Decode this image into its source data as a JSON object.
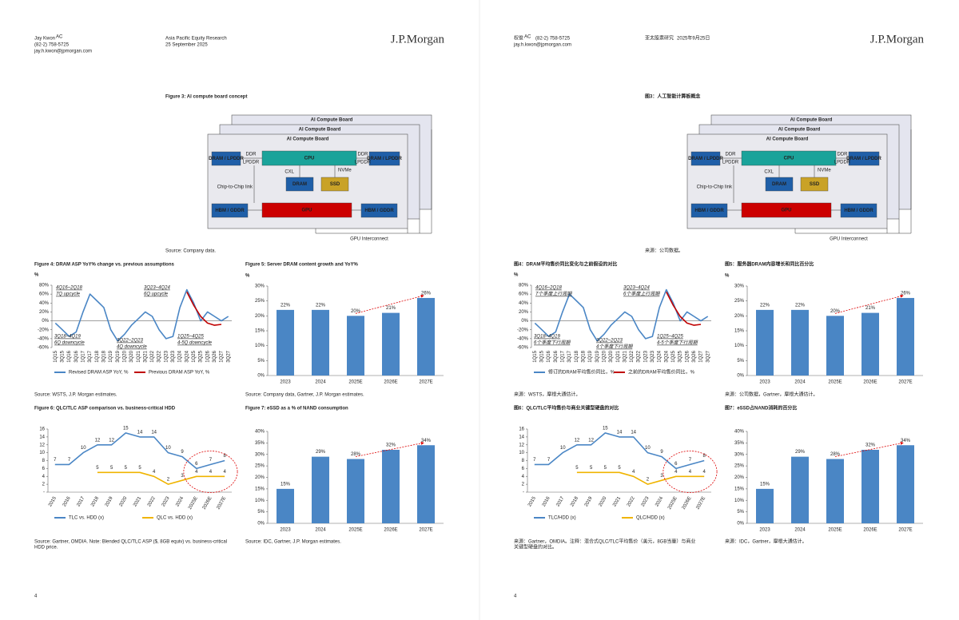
{
  "diagram": {
    "board": "AI Compute Board",
    "cpu": "CPU",
    "gpu": "GPU",
    "dram_lpddr": "DRAM / LPDDR",
    "ddr": "DDR",
    "lpddr": "LPDDR",
    "cxl": "CXL",
    "nvme": "NVMe",
    "c2c": "Chip-to-Chip link",
    "dram": "DRAM",
    "ssd": "SSD",
    "hbm": "HBM / GDDR",
    "interconnect": "GPU Interconnect"
  },
  "charts": {
    "fig4": {
      "type": "line",
      "unit": "%",
      "grid": false,
      "categories": [
        "1Q15",
        "3Q15",
        "1Q16",
        "3Q16",
        "1Q17",
        "3Q17",
        "1Q18",
        "3Q18",
        "1Q19",
        "3Q19",
        "1Q20",
        "3Q20",
        "1Q21",
        "3Q21",
        "1Q22",
        "3Q22",
        "1Q23",
        "3Q23",
        "1Q24",
        "3Q24",
        "1Q25",
        "3Q25",
        "1Q26",
        "3Q26",
        "1Q27",
        "3Q27"
      ],
      "series": [
        {
          "color": "#4a86c5",
          "values": [
            -5,
            -20,
            -35,
            -25,
            20,
            60,
            45,
            30,
            -20,
            -45,
            -30,
            -10,
            5,
            20,
            10,
            -20,
            -40,
            -35,
            30,
            70,
            40,
            0,
            20,
            10,
            0,
            10
          ]
        },
        {
          "color": "#c00000",
          "values": [
            null,
            null,
            null,
            null,
            null,
            null,
            null,
            null,
            null,
            null,
            null,
            null,
            null,
            null,
            null,
            null,
            null,
            null,
            null,
            65,
            35,
            10,
            -5,
            -10,
            -8,
            null
          ]
        }
      ],
      "ylim": [
        -60,
        80
      ],
      "yticks": [
        {
          "value": 80,
          "label": "80%"
        },
        {
          "value": 60,
          "label": "60%"
        },
        {
          "value": 40,
          "label": "40%"
        },
        {
          "value": 20,
          "label": "20%"
        },
        {
          "value": 0,
          "label": "0%"
        },
        {
          "value": -20,
          "label": "-20%"
        },
        {
          "value": -40,
          "label": "-40%"
        },
        {
          "value": -60,
          "label": "-60%"
        }
      ]
    },
    "fig5": {
      "type": "bar",
      "unit": "%",
      "grid": false,
      "color": "#4a86c5",
      "categories": [
        "2023",
        "2024",
        "2025E",
        "2026E",
        "2027E"
      ],
      "values": [
        22,
        22,
        20,
        21,
        26
      ],
      "value_labels": [
        "22%",
        "22%",
        "20%",
        "21%",
        "26%"
      ],
      "ylim": [
        0,
        30
      ],
      "yticks": [
        {
          "value": 0,
          "label": "0%"
        },
        {
          "value": 5,
          "label": "5%"
        },
        {
          "value": 10,
          "label": "10%"
        },
        {
          "value": 15,
          "label": "15%"
        },
        {
          "value": 20,
          "label": "20%"
        },
        {
          "value": 25,
          "label": "25%"
        },
        {
          "value": 30,
          "label": "30%"
        }
      ]
    },
    "fig6": {
      "type": "line",
      "grid": false,
      "data_labels": true,
      "categories": [
        "2015",
        "2016",
        "2017",
        "2018",
        "2019",
        "2020",
        "2021",
        "2022",
        "2023",
        "2024",
        "2025E",
        "2026E",
        "2027E"
      ],
      "series": [
        {
          "color": "#4a86c5",
          "values": [
            7,
            7,
            10,
            12,
            12,
            15,
            14,
            14,
            10,
            9,
            6,
            7,
            8
          ]
        },
        {
          "color": "#f0b400",
          "values": [
            null,
            null,
            null,
            5,
            5,
            5,
            5,
            4,
            2,
            3,
            4,
            4,
            4
          ]
        }
      ],
      "ylim": [
        0,
        16
      ],
      "yticks": [
        {
          "value": 0,
          "label": "-"
        },
        2,
        4,
        6,
        8,
        10,
        12,
        14,
        16
      ]
    },
    "fig7": {
      "type": "bar",
      "grid": false,
      "color": "#4a86c5",
      "categories": [
        "2023",
        "2024",
        "2025E",
        "2026E",
        "2027E"
      ],
      "values": [
        15,
        29,
        28,
        32,
        34
      ],
      "value_labels": [
        "15%",
        "29%",
        "28%",
        "32%",
        "34%"
      ],
      "ylim": [
        0,
        40
      ],
      "yticks": [
        {
          "value": 0,
          "label": "0%"
        },
        {
          "value": 5,
          "label": "5%"
        },
        {
          "value": 10,
          "label": "10%"
        },
        {
          "value": 15,
          "label": "15%"
        },
        {
          "value": 20,
          "label": "20%"
        },
        {
          "value": 25,
          "label": "25%"
        },
        {
          "value": 30,
          "label": "30%"
        },
        {
          "value": 35,
          "label": "35%"
        },
        {
          "value": 40,
          "label": "40%"
        }
      ]
    }
  },
  "pages": [
    {
      "title_color": "#2f6fb5",
      "header": {
        "author": "Jay Kwon",
        "author_mark": "AC",
        "phone": "(82-2) 758-5725",
        "email": "jay.h.kwon@jpmorgan.com",
        "dept": "Asia Pacific Equity Research",
        "date": "25 September 2025",
        "logo": "J.P.Morgan"
      },
      "fig3": {
        "title": "Figure 3: AI compute board concept",
        "source": [
          "Source: Company data."
        ]
      },
      "fig4": {
        "title": "Figure 4: DRAM ASP YoY% change vs. previous assumptions",
        "source": [
          "Source: WSTS, J.P. Morgan estimates."
        ],
        "legend": [
          "Revised DRAM ASP YoY, %",
          "Previous DRAM ASP YoY, %"
        ],
        "annotations": [
          {
            "period": "4Q16~2Q18",
            "label": "7Q upcycle"
          },
          {
            "period": "3Q23~4Q24",
            "label": "6Q upcycle"
          },
          {
            "period": "3Q18~4Q19",
            "label": "6Q downcycle"
          },
          {
            "period": "3Q22~2Q23",
            "label": "4Q downcycle"
          },
          {
            "period": "1Q25~4Q25",
            "label": "4-5Q downcycle"
          }
        ]
      },
      "fig5": {
        "title": "Figure 5: Server DRAM content growth and YoY%",
        "source": [
          "Source: Company data, Gartner, J.P. Morgan estimates."
        ]
      },
      "fig6": {
        "title": "Figure 6: QLC/TLC ASP comparison vs. business-critical HDD",
        "source": [
          "Source: Gartner, OMDIA. Note: Blended QLC/TLC ASP ($, 8GB equiv) vs. business-critical",
          "HDD price."
        ],
        "legend": [
          "TLC vs. HDD (x)",
          "QLC vs. HDD (x)"
        ]
      },
      "fig7": {
        "title": "Figure 7: eSSD as a % of NAND consumption",
        "source": [
          "Source: IDC, Gartner, J.P. Morgan estimates."
        ]
      },
      "page_number": "4"
    },
    {
      "title_color": "#000000",
      "header": {
        "author": "权俊",
        "author_mark": "AC",
        "phone": "(82-2) 758-5725",
        "email": "jay.h.kwon@jpmorgan.com",
        "dept": "亚太股票研究",
        "date": "2025年9月25日",
        "logo": "J.P.Morgan"
      },
      "fig3": {
        "title": "图3：人工智能计算板概念",
        "source": [
          "来源：公司数据。"
        ]
      },
      "fig4": {
        "title": "图4：DRAM平均售价同比变化与之前假设的对比",
        "source": [
          "来源：WSTS，摩根大通估计。"
        ],
        "legend": [
          "修订的DRAM平均售价同比，%",
          "之前的DRAM平均售价同比，%"
        ],
        "annotations": [
          {
            "period": "4Q16~2Q18",
            "label": "7个季度上行周期"
          },
          {
            "period": "3Q23~4Q24",
            "label": "6个季度上行周期"
          },
          {
            "period": "3Q18~4Q19",
            "label": "6个季度下行周期"
          },
          {
            "period": "3Q22~2Q23",
            "label": "4个季度下行周期"
          },
          {
            "period": "1Q25~4Q25",
            "label": "4-5个季度下行周期"
          }
        ]
      },
      "fig5": {
        "title": "图5：服务器DRAM内容增长和同比百分比",
        "source": [
          "来源：公司数据，Gartner，摩根大通估计。"
        ]
      },
      "fig6": {
        "title": "图6：QLC/TLC平均售价与商业关键型硬盘的对比",
        "source": [
          "来源：Gartner，OMDIA。注释：混合式QLC/TLC平均售价（美元，8GB当量）与商业",
          "关键型硬盘的对比。"
        ],
        "legend": [
          "TLC/HDD (x)",
          "QLC/HDD (x)"
        ]
      },
      "fig7": {
        "title": "图7：eSSD占NAND消耗的百分比",
        "source": [
          "来源：IDC，Gartner，摩根大通估计。"
        ]
      },
      "page_number": "4"
    }
  ]
}
